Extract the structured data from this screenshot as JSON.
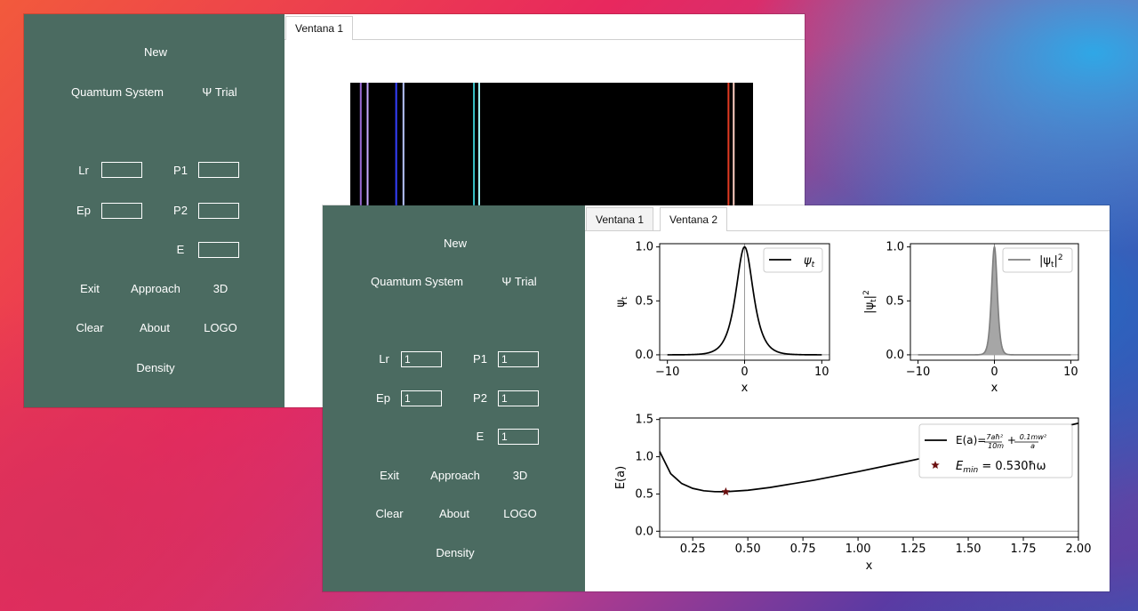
{
  "panel": {
    "new": "New",
    "quantum_system": "Quamtum System",
    "psi_trial": "Ψ Trial",
    "labels": {
      "lr": "Lr",
      "p1": "P1",
      "ep": "Ep",
      "p2": "P2",
      "e": "E"
    },
    "exit": "Exit",
    "approach": "Approach",
    "three_d": "3D",
    "clear": "Clear",
    "about": "About",
    "logo": "LOGO",
    "density": "Density"
  },
  "back_window": {
    "tabs": [
      "Ventana 1"
    ],
    "fields": {
      "lr": "",
      "p1": "",
      "ep": "",
      "p2": "",
      "e": ""
    },
    "spectrum": {
      "lines": [
        {
          "pos": 0.026,
          "color": "#9c6bd6"
        },
        {
          "pos": 0.043,
          "color": "#c9a9ff"
        },
        {
          "pos": 0.114,
          "color": "#3540ff"
        },
        {
          "pos": 0.132,
          "color": "#b9c6ff"
        },
        {
          "pos": 0.307,
          "color": "#39c3c9"
        },
        {
          "pos": 0.32,
          "color": "#9ff1f4"
        },
        {
          "pos": 0.939,
          "color": "#e23b22"
        },
        {
          "pos": 0.952,
          "color": "#ffd0c4"
        }
      ]
    }
  },
  "front_window": {
    "tabs": [
      "Ventana 1",
      "Ventana 2"
    ],
    "active_tab": 1,
    "fields": {
      "lr": "1",
      "p1": "1",
      "ep": "1",
      "p2": "1",
      "e": "1"
    }
  },
  "chart_data": [
    {
      "type": "line",
      "xlabel": "x",
      "ylabel": "ψt",
      "xlim": [
        -11,
        11
      ],
      "ylim": [
        -0.05,
        1.03
      ],
      "xticks": [
        "−10",
        "0",
        "10"
      ],
      "yticks": [
        "0.0",
        "0.5",
        "1.0"
      ],
      "legend": "top-right",
      "series": [
        {
          "name": "ψt",
          "color": "#000000",
          "function": "sech",
          "width": 1.0
        }
      ]
    },
    {
      "type": "area",
      "xlabel": "x",
      "ylabel": "|ψt|²",
      "xlim": [
        -11,
        11
      ],
      "ylim": [
        -0.05,
        1.03
      ],
      "xticks": [
        "−10",
        "0",
        "10"
      ],
      "yticks": [
        "0.0",
        "0.5",
        "1.0"
      ],
      "legend": "top-right",
      "series": [
        {
          "name": "|ψt|²",
          "color": "#808080",
          "function": "sech^2",
          "width": 0.5
        }
      ]
    },
    {
      "type": "line",
      "xlabel": "x",
      "ylabel": "E(a)",
      "xlim": [
        0.1,
        2.0
      ],
      "ylim": [
        -0.08,
        1.52
      ],
      "xticks": [
        "0.25",
        "0.50",
        "0.75",
        "1.00",
        "1.25",
        "1.50",
        "1.75",
        "2.00"
      ],
      "yticks": [
        "0.0",
        "0.5",
        "1.0",
        "1.5"
      ],
      "legend": "top-right",
      "series": [
        {
          "name": "E(a)=7aħ²/10m + 0.1mw²/a",
          "color": "#000000",
          "x": [
            0.1,
            0.15,
            0.2,
            0.25,
            0.3,
            0.35,
            0.4,
            0.5,
            0.6,
            0.8,
            1.0,
            1.2,
            1.4,
            1.6,
            1.8,
            2.0
          ],
          "y": [
            1.07,
            0.772,
            0.64,
            0.575,
            0.543,
            0.531,
            0.53,
            0.55,
            0.587,
            0.685,
            0.8,
            0.923,
            1.051,
            1.183,
            1.316,
            1.45
          ]
        },
        {
          "name": "Emin = 0.530ħω",
          "type": "scatter",
          "marker": "star",
          "color": "#6b1010",
          "x": [
            0.4
          ],
          "y": [
            0.53
          ]
        }
      ]
    }
  ]
}
